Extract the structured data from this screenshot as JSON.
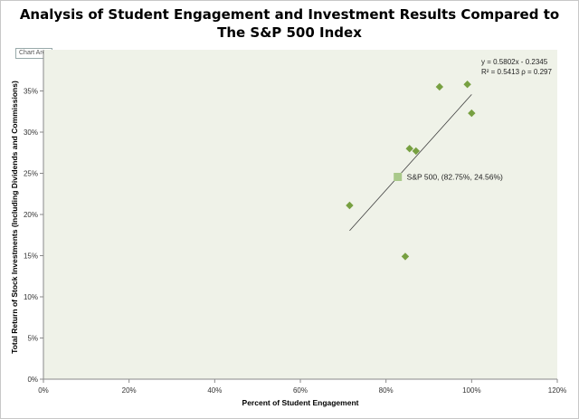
{
  "chart_data": {
    "type": "scatter",
    "title_line1": "Analysis of Student Engagement and Investment Results Compared to",
    "title_line2": "The S&P 500 Index",
    "chart_area_label": "Chart Area",
    "xlabel": "Percent of Student Engagement",
    "ylabel": "Total Return of Stock Investments (Including Dividends and Commissions)",
    "xlim": [
      0,
      1.2
    ],
    "ylim": [
      0,
      0.4
    ],
    "x_ticks": [
      0,
      0.2,
      0.4,
      0.6,
      0.8,
      1.0,
      1.2
    ],
    "x_tick_labels": [
      "0%",
      "20%",
      "40%",
      "60%",
      "80%",
      "100%",
      "120%"
    ],
    "y_ticks": [
      0,
      0.05,
      0.1,
      0.15,
      0.2,
      0.25,
      0.3,
      0.35
    ],
    "y_tick_labels": [
      "0%",
      "5%",
      "10%",
      "15%",
      "20%",
      "25%",
      "30%",
      "35%"
    ],
    "grid": false,
    "points": [
      {
        "x": 0.715,
        "y": 0.211
      },
      {
        "x": 0.845,
        "y": 0.149
      },
      {
        "x": 0.855,
        "y": 0.28
      },
      {
        "x": 0.87,
        "y": 0.277
      },
      {
        "x": 0.925,
        "y": 0.355
      },
      {
        "x": 0.99,
        "y": 0.358
      },
      {
        "x": 1.0,
        "y": 0.323
      }
    ],
    "benchmark": {
      "x": 0.8275,
      "y": 0.2456,
      "label": "S&P 500, (82.75%, 24.56%)"
    },
    "trendline": {
      "slope": 0.5802,
      "intercept": -0.2345,
      "x_range": [
        0.715,
        1.0
      ]
    },
    "equation_line1": "y = 0.5802x - 0.2345",
    "equation_line2": "R² = 0.5413 ρ = 0.297",
    "colors": {
      "plot_bg": "#eff2e8",
      "marker": "#77a041",
      "benchmark": "#a9c98a",
      "trendline": "#404040"
    }
  }
}
